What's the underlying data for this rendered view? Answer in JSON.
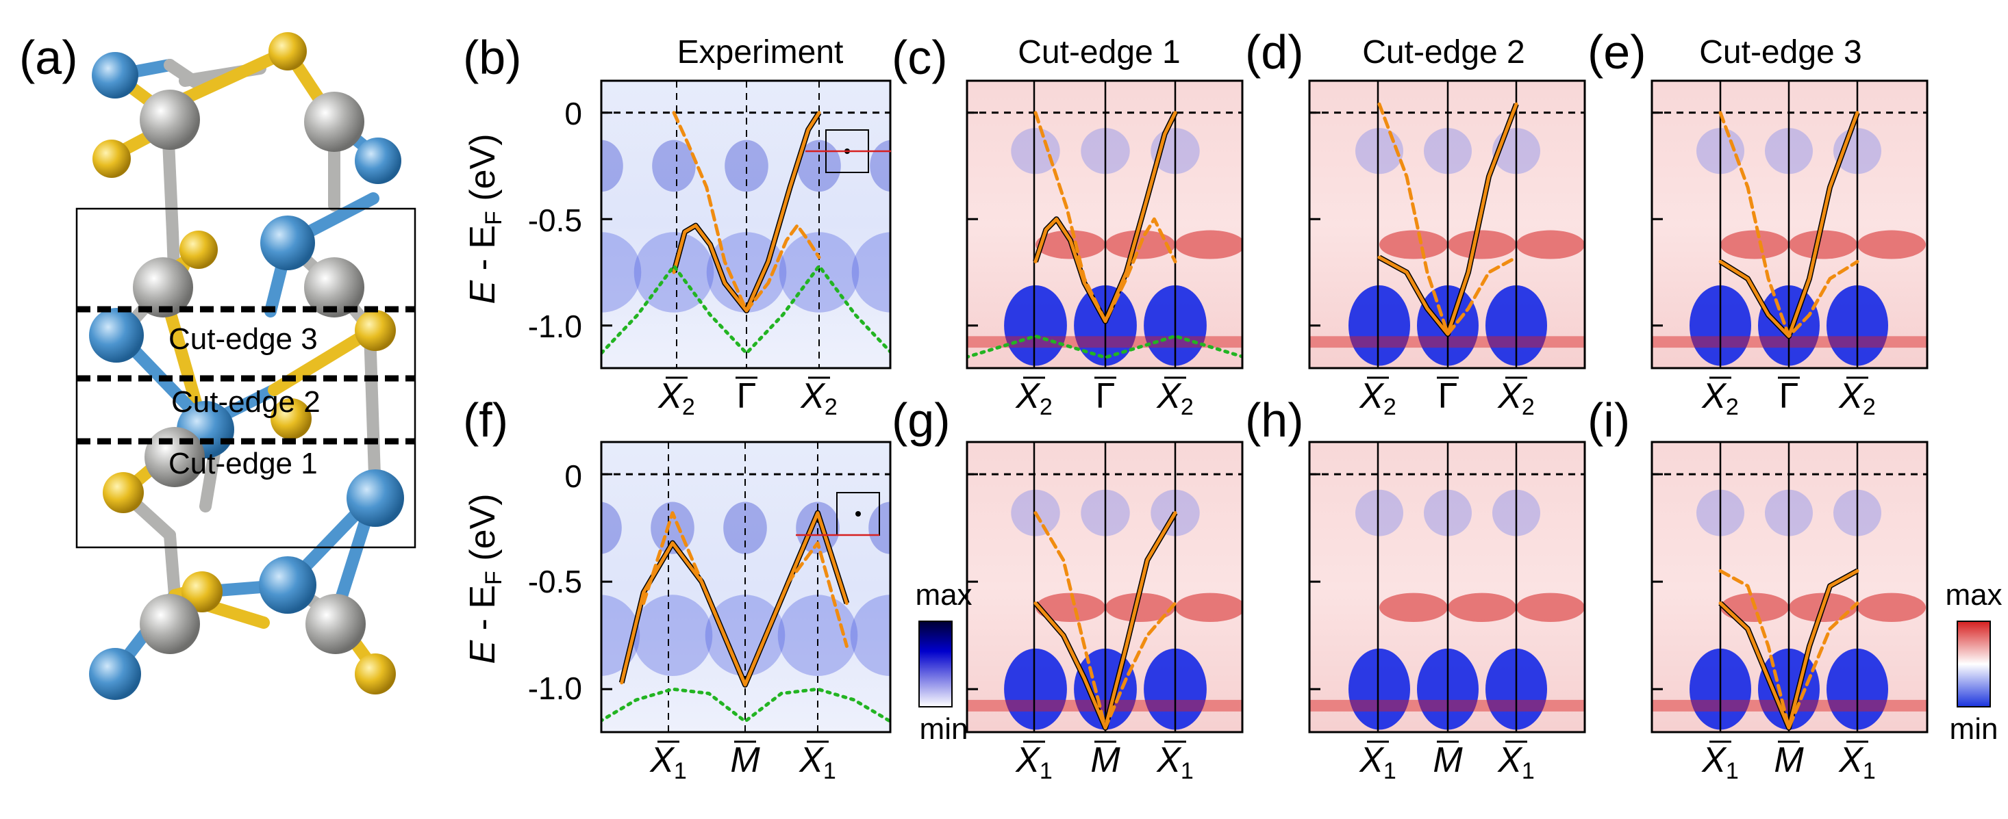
{
  "panel_labels": {
    "a": "(a)",
    "b": "(b)",
    "c": "(c)",
    "d": "(d)",
    "e": "(e)",
    "f": "(f)",
    "g": "(g)",
    "h": "(h)",
    "i": "(i)"
  },
  "titles": {
    "b": "Experiment",
    "c": "Cut-edge 1",
    "d": "Cut-edge 2",
    "e": "Cut-edge 3"
  },
  "structure": {
    "cut_edge_labels": [
      "Cut-edge 3",
      "Cut-edge 2",
      "Cut-edge 1"
    ],
    "atom_colors": {
      "blue": "#4d95cf",
      "gray": "#b2b2b0",
      "yellow": "#e8bd22"
    }
  },
  "y_axis": {
    "label_E": "E",
    "label_minus": " - E",
    "label_sub": "F",
    "label_unit": " (eV)",
    "ticks": [
      "0",
      "-0.5",
      "-1.0"
    ]
  },
  "k_labels": {
    "top": {
      "left": "X",
      "left_sub": "2",
      "center": "Γ",
      "right": "X",
      "right_sub": "2"
    },
    "bottom": {
      "left": "X",
      "left_sub": "1",
      "center": "M",
      "right": "X",
      "right_sub": "1"
    }
  },
  "colorbars": {
    "blue": {
      "max": "max",
      "min": "min",
      "color": "#0000cc"
    },
    "redblue": {
      "max": "max",
      "min": "min",
      "red": "#d62020",
      "blue": "#1a33dd"
    }
  },
  "chart_data": [
    {
      "type": "heatmap",
      "panel": "b",
      "title": "Experiment",
      "ylabel": "E - E_F (eV)",
      "ylim": [
        -1.2,
        0.15
      ],
      "yticks": [
        0,
        -0.5,
        -1.0
      ],
      "k_points": [
        "X2",
        "Γ",
        "X2"
      ],
      "series": [
        {
          "name": "orange solid",
          "x": [
            -1.0,
            -0.85,
            -0.7,
            -0.5,
            -0.3,
            0.0,
            0.3,
            0.6,
            0.85,
            1.0
          ],
          "y": [
            -0.75,
            -0.56,
            -0.53,
            -0.62,
            -0.8,
            -0.93,
            -0.7,
            -0.35,
            -0.08,
            0.0
          ]
        },
        {
          "name": "orange dashed",
          "x": [
            -1.0,
            -0.8,
            -0.55,
            -0.3,
            0.0,
            0.3,
            0.55,
            0.7,
            0.85,
            1.0
          ],
          "y": [
            0.0,
            -0.15,
            -0.35,
            -0.7,
            -0.93,
            -0.8,
            -0.6,
            -0.53,
            -0.6,
            -0.68
          ]
        },
        {
          "name": "green dotted",
          "x": [
            -2.0,
            -1.5,
            -1.0,
            -0.5,
            0.0,
            0.5,
            1.0,
            1.5,
            2.0
          ],
          "y": [
            -1.13,
            -0.95,
            -0.72,
            -0.95,
            -1.13,
            -0.95,
            -0.72,
            -0.95,
            -1.13
          ]
        }
      ]
    },
    {
      "type": "heatmap",
      "panel": "c",
      "title": "Cut-edge 1",
      "ylim": [
        -1.2,
        0.15
      ],
      "k_points": [
        "X2",
        "Γ",
        "X2"
      ],
      "series": [
        {
          "name": "orange solid",
          "x": [
            -1.0,
            -0.85,
            -0.7,
            -0.5,
            -0.3,
            0.0,
            0.3,
            0.6,
            0.85,
            1.0
          ],
          "y": [
            -0.7,
            -0.55,
            -0.5,
            -0.6,
            -0.8,
            -0.98,
            -0.75,
            -0.4,
            -0.1,
            0.0
          ]
        },
        {
          "name": "orange dashed",
          "x": [
            -1.0,
            -0.8,
            -0.55,
            -0.3,
            0.0,
            0.3,
            0.55,
            0.7,
            0.85,
            1.0
          ],
          "y": [
            0.0,
            -0.2,
            -0.45,
            -0.78,
            -0.98,
            -0.78,
            -0.58,
            -0.5,
            -0.6,
            -0.7
          ]
        },
        {
          "name": "green dotted",
          "x": [
            -2.0,
            -1.5,
            -1.0,
            -0.5,
            0.0,
            0.5,
            1.0,
            1.5,
            2.0
          ],
          "y": [
            -1.15,
            -1.1,
            -1.05,
            -1.1,
            -1.15,
            -1.1,
            -1.05,
            -1.1,
            -1.15
          ]
        }
      ]
    },
    {
      "type": "heatmap",
      "panel": "d",
      "title": "Cut-edge 2",
      "ylim": [
        -1.2,
        0.15
      ],
      "k_points": [
        "X2",
        "Γ",
        "X2"
      ],
      "series": [
        {
          "name": "orange solid",
          "x": [
            -1.0,
            -0.6,
            -0.3,
            0.0,
            0.3,
            0.6,
            1.0
          ],
          "y": [
            -0.68,
            -0.75,
            -0.92,
            -1.04,
            -0.75,
            -0.3,
            0.04
          ]
        },
        {
          "name": "orange dashed",
          "x": [
            -1.0,
            -0.6,
            -0.3,
            0.0,
            0.3,
            0.6,
            1.0
          ],
          "y": [
            0.04,
            -0.3,
            -0.75,
            -1.04,
            -0.92,
            -0.75,
            -0.68
          ]
        }
      ]
    },
    {
      "type": "heatmap",
      "panel": "e",
      "title": "Cut-edge 3",
      "ylim": [
        -1.2,
        0.15
      ],
      "k_points": [
        "X2",
        "Γ",
        "X2"
      ],
      "series": [
        {
          "name": "orange solid",
          "x": [
            -1.0,
            -0.6,
            -0.3,
            0.0,
            0.3,
            0.6,
            1.0
          ],
          "y": [
            -0.7,
            -0.78,
            -0.95,
            -1.05,
            -0.78,
            -0.35,
            0.0
          ]
        },
        {
          "name": "orange dashed",
          "x": [
            -1.0,
            -0.6,
            -0.3,
            0.0,
            0.3,
            0.6,
            1.0
          ],
          "y": [
            0.0,
            -0.35,
            -0.78,
            -1.05,
            -0.95,
            -0.78,
            -0.7
          ]
        }
      ]
    },
    {
      "type": "heatmap",
      "panel": "f",
      "ylabel": "E - E_F (eV)",
      "ylim": [
        -1.2,
        0.15
      ],
      "yticks": [
        0,
        -0.5,
        -1.0
      ],
      "k_points": [
        "X1",
        "M",
        "X1"
      ],
      "series": [
        {
          "name": "orange solid",
          "x": [
            -1.7,
            -1.4,
            -1.0,
            -0.6,
            0.0,
            0.6,
            1.0,
            1.4
          ],
          "y": [
            -0.97,
            -0.55,
            -0.32,
            -0.5,
            -0.98,
            -0.5,
            -0.18,
            -0.6
          ]
        },
        {
          "name": "orange dashed",
          "x": [
            -1.4,
            -1.0,
            -0.6,
            0.0,
            0.6,
            1.0,
            1.4
          ],
          "y": [
            -0.6,
            -0.18,
            -0.5,
            -0.98,
            -0.5,
            -0.32,
            -0.8
          ]
        },
        {
          "name": "green dotted",
          "x": [
            -2.0,
            -1.5,
            -1.0,
            -0.5,
            0.0,
            0.5,
            1.0,
            1.5,
            2.0
          ],
          "y": [
            -1.15,
            -1.05,
            -1.0,
            -1.02,
            -1.15,
            -1.02,
            -1.0,
            -1.05,
            -1.15
          ]
        }
      ]
    },
    {
      "type": "heatmap",
      "panel": "g",
      "ylim": [
        -1.2,
        0.15
      ],
      "k_points": [
        "X1",
        "M",
        "X1"
      ],
      "series": [
        {
          "name": "orange solid",
          "x": [
            -1.0,
            -0.6,
            -0.3,
            0.0,
            0.3,
            0.6,
            1.0
          ],
          "y": [
            -0.6,
            -0.75,
            -0.95,
            -1.18,
            -0.8,
            -0.4,
            -0.18
          ]
        },
        {
          "name": "orange dashed",
          "x": [
            -1.0,
            -0.6,
            -0.3,
            0.0,
            0.3,
            0.6,
            1.0
          ],
          "y": [
            -0.18,
            -0.4,
            -0.8,
            -1.18,
            -0.95,
            -0.75,
            -0.6
          ]
        }
      ]
    },
    {
      "type": "heatmap",
      "panel": "h",
      "ylim": [
        -1.2,
        0.15
      ],
      "k_points": [
        "X1",
        "M",
        "X1"
      ],
      "series": []
    },
    {
      "type": "heatmap",
      "panel": "i",
      "ylim": [
        -1.2,
        0.15
      ],
      "k_points": [
        "X1",
        "M",
        "X1"
      ],
      "series": [
        {
          "name": "orange solid",
          "x": [
            -1.0,
            -0.6,
            -0.3,
            0.0,
            0.3,
            0.6,
            1.0
          ],
          "y": [
            -0.6,
            -0.72,
            -0.95,
            -1.18,
            -0.8,
            -0.52,
            -0.45
          ]
        },
        {
          "name": "orange dashed",
          "x": [
            -1.0,
            -0.6,
            -0.3,
            0.0,
            0.3,
            0.6,
            1.0
          ],
          "y": [
            -0.45,
            -0.52,
            -0.8,
            -1.18,
            -0.95,
            -0.72,
            -0.6
          ]
        }
      ]
    }
  ]
}
